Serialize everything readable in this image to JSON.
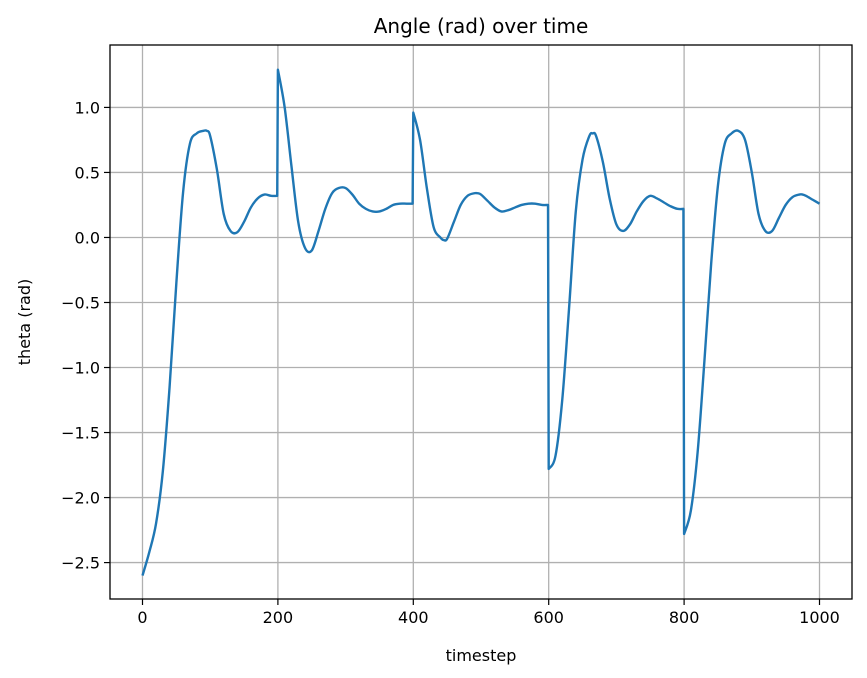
{
  "chart_data": {
    "type": "line",
    "title": "Angle (rad) over time",
    "xlabel": "timestep",
    "ylabel": "theta (rad)",
    "xlim": [
      -48,
      1048
    ],
    "ylim": [
      -2.78,
      1.48
    ],
    "xticks": [
      0,
      200,
      400,
      600,
      800,
      1000
    ],
    "xtick_labels": [
      "0",
      "200",
      "400",
      "600",
      "800",
      "1000"
    ],
    "yticks": [
      -2.5,
      -2.0,
      -1.5,
      -1.0,
      -0.5,
      0.0,
      0.5,
      1.0
    ],
    "ytick_labels": [
      "−2.5",
      "−2.0",
      "−1.5",
      "−1.0",
      "−0.5",
      "0.0",
      "0.5",
      "1.0"
    ],
    "grid": true,
    "line_color": "#1f77b4",
    "series": [
      {
        "x": [
          0,
          10,
          20,
          30,
          40,
          50,
          60,
          70,
          80,
          90,
          95,
          100,
          110,
          120,
          130,
          140,
          150,
          160,
          170,
          180,
          190,
          199,
          200,
          210,
          220,
          230,
          240,
          250,
          260,
          270,
          280,
          290,
          300,
          310,
          320,
          330,
          340,
          350,
          360,
          370,
          380,
          390,
          399,
          400,
          410,
          420,
          430,
          440,
          445,
          450,
          460,
          470,
          480,
          490,
          495,
          500,
          510,
          520,
          530,
          540,
          550,
          560,
          570,
          580,
          590,
          599,
          600,
          610,
          620,
          630,
          640,
          650,
          660,
          665,
          670,
          680,
          690,
          700,
          710,
          720,
          730,
          740,
          750,
          760,
          770,
          780,
          790,
          799,
          800,
          810,
          820,
          830,
          840,
          850,
          860,
          870,
          880,
          890,
          900,
          910,
          920,
          930,
          940,
          950,
          960,
          970,
          975,
          980,
          990,
          1000
        ],
        "y": [
          -2.6,
          -2.42,
          -2.2,
          -1.8,
          -1.15,
          -0.35,
          0.35,
          0.72,
          0.8,
          0.82,
          0.82,
          0.78,
          0.52,
          0.18,
          0.05,
          0.04,
          0.12,
          0.23,
          0.3,
          0.33,
          0.32,
          0.32,
          1.29,
          1.0,
          0.55,
          0.12,
          -0.08,
          -0.1,
          0.05,
          0.22,
          0.34,
          0.38,
          0.38,
          0.33,
          0.26,
          0.22,
          0.2,
          0.2,
          0.22,
          0.25,
          0.26,
          0.26,
          0.26,
          0.96,
          0.75,
          0.38,
          0.08,
          0.0,
          -0.02,
          -0.01,
          0.12,
          0.25,
          0.32,
          0.34,
          0.34,
          0.33,
          0.28,
          0.23,
          0.2,
          0.21,
          0.23,
          0.25,
          0.26,
          0.26,
          0.25,
          0.25,
          -1.78,
          -1.68,
          -1.25,
          -0.55,
          0.2,
          0.6,
          0.78,
          0.8,
          0.78,
          0.58,
          0.3,
          0.1,
          0.05,
          0.1,
          0.2,
          0.28,
          0.32,
          0.3,
          0.27,
          0.24,
          0.22,
          0.22,
          -2.28,
          -2.1,
          -1.65,
          -0.95,
          -0.2,
          0.4,
          0.72,
          0.8,
          0.82,
          0.75,
          0.5,
          0.18,
          0.05,
          0.05,
          0.15,
          0.25,
          0.31,
          0.33,
          0.33,
          0.32,
          0.29,
          0.26
        ]
      }
    ]
  }
}
